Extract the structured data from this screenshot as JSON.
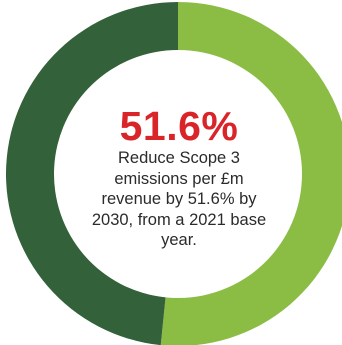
{
  "colors": {
    "progress": "#8bbd45",
    "remainder": "#33613a",
    "highlight": "#d9252a",
    "text": "#2b2b2b"
  },
  "chart_data": {
    "type": "pie",
    "subtype": "donut",
    "start": "top",
    "direction": "clockwise",
    "slices": [
      {
        "value": 51.6,
        "color": "#8bbd45"
      },
      {
        "value": 48.4,
        "color": "#33613a"
      }
    ],
    "center_value": "51.6%",
    "center_text": "Reduce Scope 3 emissions per £m revenue by 51.6% by 2030, from a 2021 base year."
  }
}
